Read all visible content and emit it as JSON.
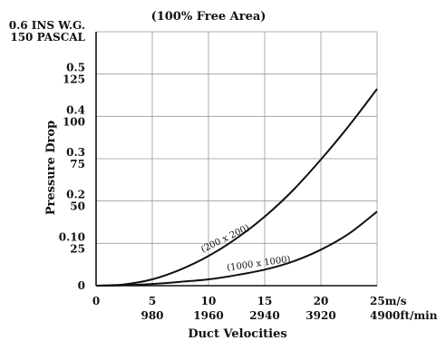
{
  "chart_data": {
    "type": "line",
    "title": "(100% Free Area)",
    "xlabel": "Duct Velocities",
    "ylabel": "Pressure Drop",
    "x_ticks": [
      {
        "value": 0,
        "label": "0",
        "label2": ""
      },
      {
        "value": 5,
        "label": "5",
        "label2": "980"
      },
      {
        "value": 10,
        "label": "10",
        "label2": "1960"
      },
      {
        "value": 15,
        "label": "15",
        "label2": "2940"
      },
      {
        "value": 20,
        "label": "20",
        "label2": "3920"
      },
      {
        "value": 25,
        "label": "25m/s",
        "label2": "4900ft/min"
      }
    ],
    "y_ticks": [
      {
        "value": 0,
        "label": "0",
        "label2": ""
      },
      {
        "value": 0.1,
        "label": "0.10",
        "label2": "25"
      },
      {
        "value": 0.2,
        "label": "0.2",
        "label2": "50"
      },
      {
        "value": 0.3,
        "label": "0.3",
        "label2": "75"
      },
      {
        "value": 0.4,
        "label": "0.4",
        "label2": "100"
      },
      {
        "value": 0.5,
        "label": "0.5",
        "label2": "125"
      },
      {
        "value": 0.6,
        "label": "0.6 INS W.G.",
        "label2": "150 PASCAL"
      }
    ],
    "xlim": [
      0,
      25
    ],
    "ylim": [
      0,
      0.6
    ],
    "grid": true,
    "series": [
      {
        "name": "(200 x 200)",
        "x": [
          0,
          2.5,
          5,
          7.5,
          10,
          12.5,
          15,
          17.5,
          20,
          22.5,
          25
        ],
        "y": [
          0,
          0.003,
          0.015,
          0.038,
          0.07,
          0.112,
          0.163,
          0.225,
          0.298,
          0.378,
          0.465
        ]
      },
      {
        "name": "(1000 x 1000)",
        "x": [
          0,
          2.5,
          5,
          7.5,
          10,
          12.5,
          15,
          17.5,
          20,
          22.5,
          25
        ],
        "y": [
          0,
          0.001,
          0.004,
          0.009,
          0.015,
          0.025,
          0.038,
          0.057,
          0.085,
          0.123,
          0.175
        ]
      }
    ]
  }
}
